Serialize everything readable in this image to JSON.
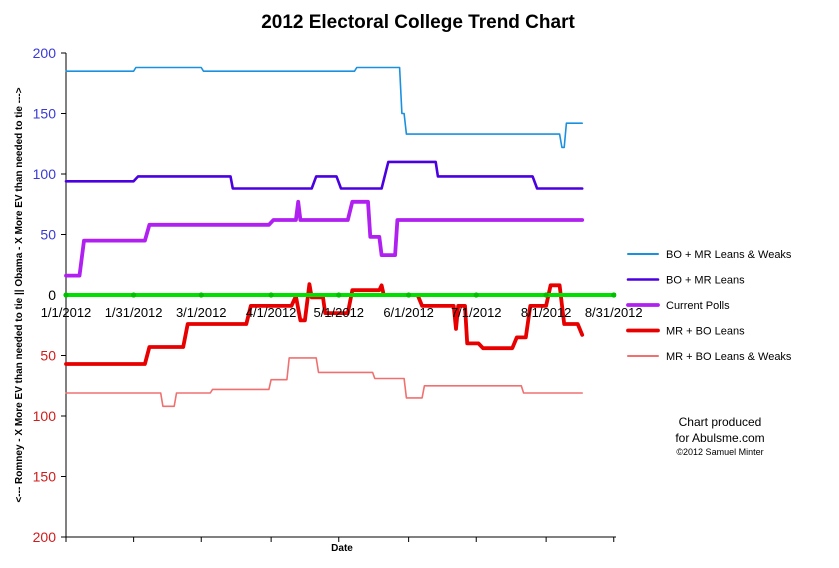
{
  "chart_data": {
    "type": "line",
    "title": "2012 Electoral College Trend Chart",
    "xlabel": "Date",
    "ylabel": "<--- Romney - X More EV than needed to tie || Obama - X More EV than needed to tie --->",
    "x_ticks": [
      "1/1/2012",
      "1/31/2012",
      "3/1/2012",
      "4/1/2012",
      "5/1/2012",
      "6/1/2012",
      "7/1/2012",
      "8/1/2012",
      "8/31/2012"
    ],
    "y_ticks_top": [
      "200",
      "150",
      "100",
      "50"
    ],
    "y_tick_zero": "0",
    "y_ticks_bottom": [
      "50",
      "100",
      "150",
      "200"
    ],
    "ylim": [
      -200,
      200
    ],
    "xlim": [
      "1/1/2012",
      "9/1/2012"
    ],
    "grid": false,
    "legend_position": "right",
    "colors": {
      "obama_axis": "#3a3ad6",
      "romney_axis": "#d01c1c",
      "zero_line": "#00e000"
    },
    "series": [
      {
        "name": "BO + MR Leans & Weaks",
        "color": "#1a90e0",
        "width": 1.6,
        "points": [
          [
            "1/1/2012",
            185
          ],
          [
            "1/31/2012",
            185
          ],
          [
            "2/1/2012",
            188
          ],
          [
            "3/1/2012",
            188
          ],
          [
            "3/2/2012",
            185
          ],
          [
            "5/8/2012",
            185
          ],
          [
            "5/9/2012",
            188
          ],
          [
            "5/28/2012",
            188
          ],
          [
            "5/29/2012",
            150
          ],
          [
            "5/30/2012",
            150
          ],
          [
            "5/31/2012",
            133
          ],
          [
            "8/7/2012",
            133
          ],
          [
            "8/8/2012",
            122
          ],
          [
            "8/9/2012",
            122
          ],
          [
            "8/10/2012",
            142
          ],
          [
            "8/17/2012",
            142
          ]
        ]
      },
      {
        "name": "BO + MR Leans",
        "color": "#4a00e0",
        "width": 2.6,
        "points": [
          [
            "1/1/2012",
            94
          ],
          [
            "1/31/2012",
            94
          ],
          [
            "2/2/2012",
            98
          ],
          [
            "3/14/2012",
            98
          ],
          [
            "3/15/2012",
            88
          ],
          [
            "4/19/2012",
            88
          ],
          [
            "4/21/2012",
            98
          ],
          [
            "4/30/2012",
            98
          ],
          [
            "5/2/2012",
            88
          ],
          [
            "5/20/2012",
            88
          ],
          [
            "5/23/2012",
            110
          ],
          [
            "6/13/2012",
            110
          ],
          [
            "6/14/2012",
            98
          ],
          [
            "7/26/2012",
            98
          ],
          [
            "7/28/2012",
            88
          ],
          [
            "8/17/2012",
            88
          ]
        ]
      },
      {
        "name": "Current Polls",
        "color": "#b020f0",
        "width": 3.8,
        "points": [
          [
            "1/1/2012",
            16
          ],
          [
            "1/7/2012",
            16
          ],
          [
            "1/9/2012",
            45
          ],
          [
            "2/5/2012",
            45
          ],
          [
            "2/7/2012",
            58
          ],
          [
            "3/31/2012",
            58
          ],
          [
            "4/2/2012",
            62
          ],
          [
            "4/12/2012",
            62
          ],
          [
            "4/13/2012",
            77
          ],
          [
            "4/14/2012",
            62
          ],
          [
            "5/5/2012",
            62
          ],
          [
            "5/7/2012",
            77
          ],
          [
            "5/14/2012",
            77
          ],
          [
            "5/15/2012",
            48
          ],
          [
            "5/19/2012",
            48
          ],
          [
            "5/20/2012",
            33
          ],
          [
            "5/26/2012",
            33
          ],
          [
            "5/27/2012",
            62
          ],
          [
            "8/17/2012",
            62
          ]
        ]
      },
      {
        "name": "MR + BO Leans",
        "color": "#e80000",
        "width": 3.8,
        "points": [
          [
            "1/1/2012",
            -57
          ],
          [
            "2/5/2012",
            -57
          ],
          [
            "2/7/2012",
            -43
          ],
          [
            "2/22/2012",
            -43
          ],
          [
            "2/24/2012",
            -24
          ],
          [
            "3/21/2012",
            -24
          ],
          [
            "3/23/2012",
            -9
          ],
          [
            "4/10/2012",
            -9
          ],
          [
            "4/12/2012",
            -1
          ],
          [
            "4/14/2012",
            -21
          ],
          [
            "4/16/2012",
            -21
          ],
          [
            "4/18/2012",
            9
          ],
          [
            "4/19/2012",
            -2
          ],
          [
            "4/24/2012",
            -2
          ],
          [
            "4/25/2012",
            -15
          ],
          [
            "5/5/2012",
            -15
          ],
          [
            "5/7/2012",
            4
          ],
          [
            "5/19/2012",
            4
          ],
          [
            "5/20/2012",
            8
          ],
          [
            "5/21/2012",
            0
          ],
          [
            "6/5/2012",
            0
          ],
          [
            "6/7/2012",
            -9
          ],
          [
            "6/21/2012",
            -9
          ],
          [
            "6/22/2012",
            -28
          ],
          [
            "6/23/2012",
            -9
          ],
          [
            "6/26/2012",
            -9
          ],
          [
            "6/27/2012",
            -40
          ],
          [
            "7/2/2012",
            -40
          ],
          [
            "7/4/2012",
            -44
          ],
          [
            "7/17/2012",
            -44
          ],
          [
            "7/19/2012",
            -35
          ],
          [
            "7/23/2012",
            -35
          ],
          [
            "7/25/2012",
            -9
          ],
          [
            "8/1/2012",
            -9
          ],
          [
            "8/3/2012",
            8
          ],
          [
            "8/7/2012",
            8
          ],
          [
            "8/9/2012",
            -24
          ],
          [
            "8/15/2012",
            -24
          ],
          [
            "8/17/2012",
            -33
          ]
        ]
      },
      {
        "name": "MR + BO Leans & Weaks",
        "color": "#f07070",
        "width": 1.6,
        "points": [
          [
            "1/1/2012",
            -81
          ],
          [
            "2/12/2012",
            -81
          ],
          [
            "2/13/2012",
            -92
          ],
          [
            "2/18/2012",
            -92
          ],
          [
            "2/19/2012",
            -81
          ],
          [
            "3/5/2012",
            -81
          ],
          [
            "3/6/2012",
            -78
          ],
          [
            "3/31/2012",
            -78
          ],
          [
            "4/1/2012",
            -70
          ],
          [
            "4/8/2012",
            -70
          ],
          [
            "4/9/2012",
            -52
          ],
          [
            "4/21/2012",
            -52
          ],
          [
            "4/22/2012",
            -64
          ],
          [
            "5/16/2012",
            -64
          ],
          [
            "5/17/2012",
            -69
          ],
          [
            "5/30/2012",
            -69
          ],
          [
            "5/31/2012",
            -85
          ],
          [
            "6/7/2012",
            -85
          ],
          [
            "6/8/2012",
            -75
          ],
          [
            "7/21/2012",
            -75
          ],
          [
            "7/22/2012",
            -81
          ],
          [
            "8/17/2012",
            -81
          ]
        ]
      }
    ],
    "annotation": {
      "line1": "Chart produced",
      "line2": "for Abulsme.com",
      "line3": "©2012 Samuel Minter"
    }
  }
}
